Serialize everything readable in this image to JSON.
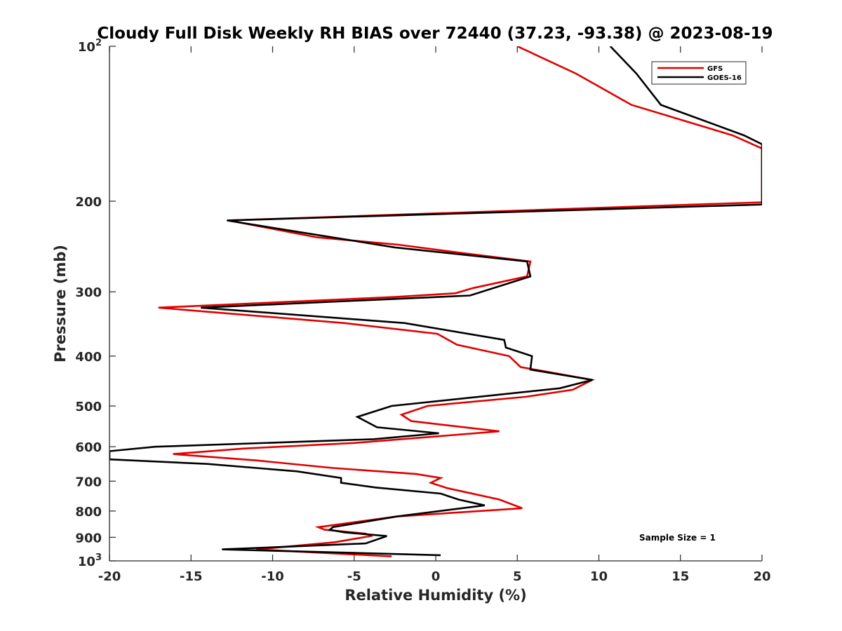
{
  "chart_data": {
    "type": "line",
    "title": "Cloudy Full Disk Weekly RH BIAS over 72440 (37.23, -93.38) @ 2023-08-19",
    "xlabel": "Relative Humidity (%)",
    "ylabel": "Pressure (mb)",
    "xlim": [
      -20,
      20
    ],
    "ylim": [
      100,
      1000
    ],
    "y_scale": "log",
    "y_reversed": true,
    "x_ticks": [
      -20,
      -15,
      -10,
      -5,
      0,
      5,
      10,
      15,
      20
    ],
    "x_tick_labels": [
      "-20",
      "-15",
      "-10",
      "-5",
      "0",
      "5",
      "10",
      "15",
      "20"
    ],
    "y_tick_labels": [
      {
        "value": 100,
        "base": "10",
        "exp": "2"
      },
      {
        "value": 200,
        "base": "200",
        "exp": ""
      },
      {
        "value": 300,
        "base": "300",
        "exp": ""
      },
      {
        "value": 400,
        "base": "400",
        "exp": ""
      },
      {
        "value": 500,
        "base": "500",
        "exp": ""
      },
      {
        "value": 600,
        "base": "600",
        "exp": ""
      },
      {
        "value": 700,
        "base": "700",
        "exp": ""
      },
      {
        "value": 800,
        "base": "800",
        "exp": ""
      },
      {
        "value": 900,
        "base": "900",
        "exp": ""
      },
      {
        "value": 1000,
        "base": "10",
        "exp": "3"
      }
    ],
    "grid": false,
    "legend_position": "top-right",
    "annotation": "Sample Size = 1",
    "series": [
      {
        "name": "GFS",
        "color": "#e00000",
        "points": [
          [
            5,
            100
          ],
          [
            8.6,
            113
          ],
          [
            12,
            130
          ],
          [
            18.2,
            149
          ],
          [
            20,
            158
          ],
          [
            20,
            201
          ],
          [
            -12.7,
            218
          ],
          [
            -7.3,
            235
          ],
          [
            -2.3,
            243
          ],
          [
            1.5,
            252
          ],
          [
            5.8,
            262
          ],
          [
            5.6,
            280
          ],
          [
            2.3,
            295
          ],
          [
            1.2,
            302
          ],
          [
            -2.5,
            307
          ],
          [
            -17,
            322
          ],
          [
            -5.6,
            345
          ],
          [
            0.1,
            362
          ],
          [
            1.3,
            380
          ],
          [
            4.5,
            400
          ],
          [
            5.2,
            420
          ],
          [
            9.6,
            445
          ],
          [
            8.4,
            465
          ],
          [
            5.5,
            480
          ],
          [
            -0.5,
            500
          ],
          [
            -2.1,
            520
          ],
          [
            -1.5,
            535
          ],
          [
            3.9,
            560
          ],
          [
            -1.5,
            578
          ],
          [
            -5,
            590
          ],
          [
            -11.8,
            605
          ],
          [
            -16.1,
            620
          ],
          [
            -11,
            638
          ],
          [
            -6.3,
            660
          ],
          [
            -1.2,
            678
          ],
          [
            0.3,
            690
          ],
          [
            -0.3,
            705
          ],
          [
            0.7,
            722
          ],
          [
            3.9,
            760
          ],
          [
            5.3,
            790
          ],
          [
            -2.4,
            820
          ],
          [
            -7.2,
            860
          ],
          [
            -6.8,
            870
          ],
          [
            -4.3,
            885
          ],
          [
            -4,
            895
          ],
          [
            -6.2,
            920
          ],
          [
            -11,
            950
          ],
          [
            -2.7,
            980
          ]
        ]
      },
      {
        "name": "GOES-16",
        "color": "#000000",
        "points": [
          [
            10.7,
            100
          ],
          [
            12.3,
            113
          ],
          [
            13.8,
            130
          ],
          [
            18.9,
            149
          ],
          [
            20,
            155
          ],
          [
            20,
            203
          ],
          [
            -12.8,
            218
          ],
          [
            -2.5,
            246
          ],
          [
            5.6,
            262
          ],
          [
            5.8,
            280
          ],
          [
            2.1,
            305
          ],
          [
            -14.4,
            322
          ],
          [
            -1.9,
            345
          ],
          [
            4.2,
            372
          ],
          [
            4.3,
            385
          ],
          [
            5.9,
            400
          ],
          [
            5.8,
            425
          ],
          [
            9.6,
            445
          ],
          [
            7.6,
            462
          ],
          [
            -2.7,
            500
          ],
          [
            -4.8,
            525
          ],
          [
            -3.6,
            550
          ],
          [
            0.2,
            565
          ],
          [
            -3.8,
            580
          ],
          [
            -17.2,
            600
          ],
          [
            -20,
            612
          ],
          [
            -20,
            635
          ],
          [
            -14,
            648
          ],
          [
            -8.5,
            670
          ],
          [
            -5.8,
            690
          ],
          [
            -5.8,
            705
          ],
          [
            -3.7,
            720
          ],
          [
            0.3,
            740
          ],
          [
            1.4,
            760
          ],
          [
            3,
            780
          ],
          [
            -2.4,
            820
          ],
          [
            -6.3,
            860
          ],
          [
            -6.5,
            870
          ],
          [
            -5.6,
            880
          ],
          [
            -3,
            895
          ],
          [
            -4.3,
            925
          ],
          [
            -13.1,
            950
          ],
          [
            0.3,
            975
          ]
        ]
      }
    ]
  }
}
